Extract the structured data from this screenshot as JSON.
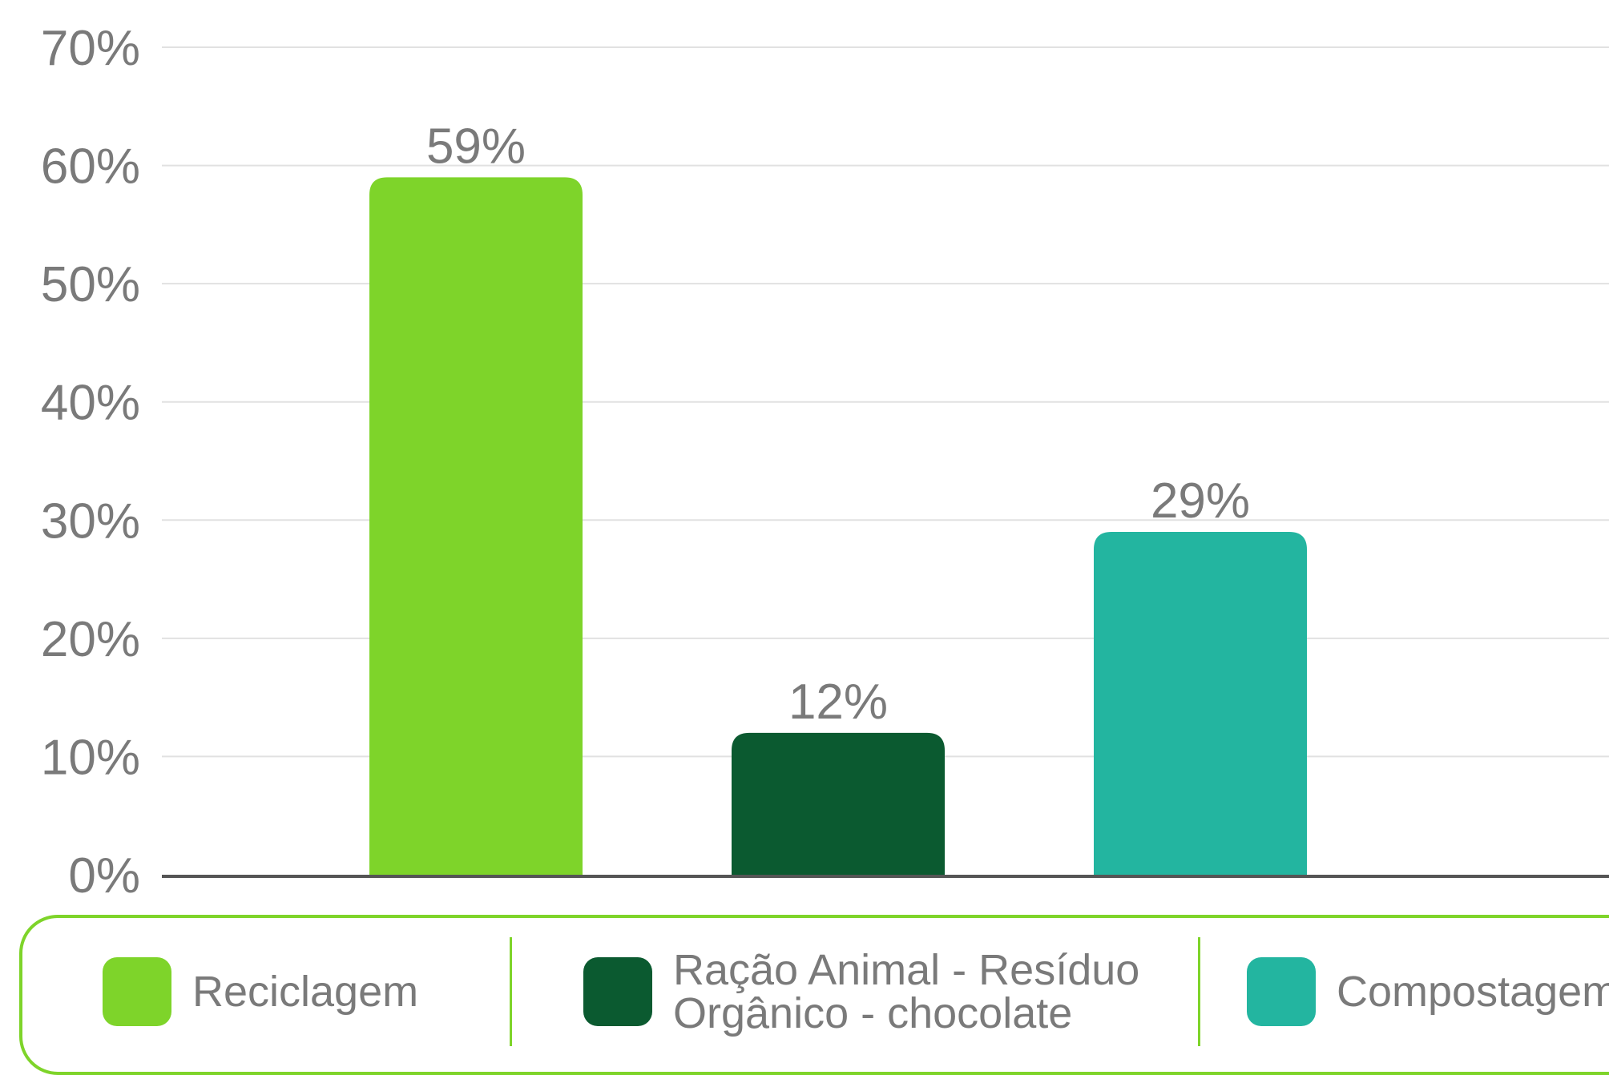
{
  "chart_data": {
    "type": "bar",
    "categories": [
      "Reciclagem",
      "Ração Animal - Resíduo\nOrgânico - chocolate",
      "Compostagem"
    ],
    "values": [
      59,
      12,
      29
    ],
    "value_labels": [
      "59%",
      "12%",
      "29%"
    ],
    "colors": [
      "#7ed42a",
      "#0b5a30",
      "#23b5a0"
    ],
    "ylim": [
      0,
      70
    ],
    "yticks": [
      0,
      10,
      20,
      30,
      40,
      50,
      60,
      70
    ],
    "ytick_labels": [
      "0%",
      "10%",
      "20%",
      "30%",
      "40%",
      "50%",
      "60%",
      "70%"
    ],
    "grid": true,
    "legend": "bottom"
  }
}
